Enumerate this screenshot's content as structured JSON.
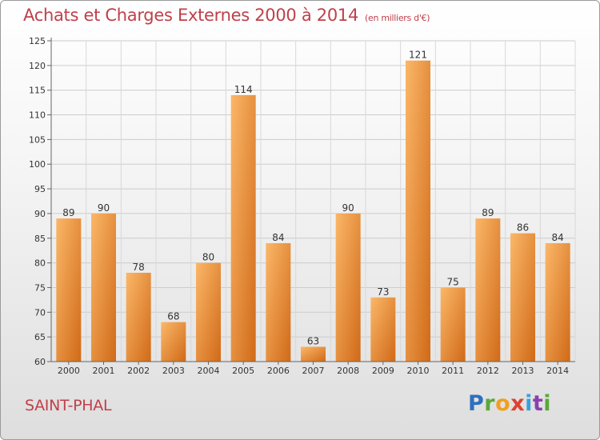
{
  "header": {
    "title": "Achats et Charges Externes 2000 à 2014",
    "subtitle": "(en milliers d'€)"
  },
  "footer": {
    "location": "SAINT-PHAL",
    "logo": "Proxiti"
  },
  "colors": {
    "title": "#c0404a",
    "bar_light": "#f7a95a",
    "bar_dark": "#d4701e",
    "gridline": "#cccccc"
  },
  "chart_data": {
    "type": "bar",
    "title": "Achats et Charges Externes 2000 à 2014",
    "subtitle": "(en milliers d'€)",
    "xlabel": "",
    "ylabel": "",
    "categories": [
      "2000",
      "2001",
      "2002",
      "2003",
      "2004",
      "2005",
      "2006",
      "2007",
      "2008",
      "2009",
      "2010",
      "2011",
      "2012",
      "2013",
      "2014"
    ],
    "values": [
      89,
      90,
      78,
      68,
      80,
      114,
      84,
      63,
      90,
      73,
      121,
      75,
      89,
      86,
      84
    ],
    "ylim": [
      60,
      125
    ],
    "yticks": [
      60,
      65,
      70,
      75,
      80,
      85,
      90,
      95,
      100,
      105,
      110,
      115,
      120,
      125
    ],
    "grid": true,
    "data_labels": true
  }
}
